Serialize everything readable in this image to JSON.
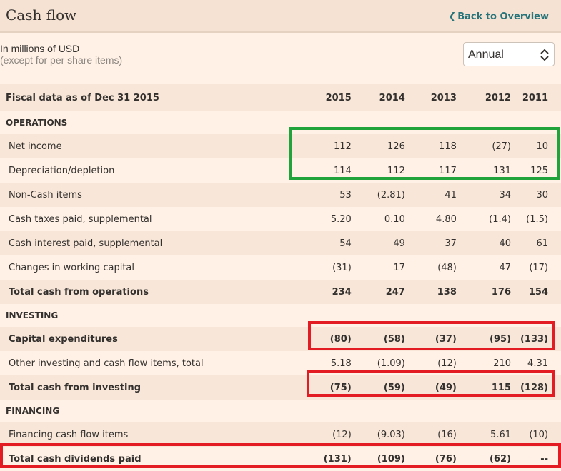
{
  "header": {
    "title": "Cash flow",
    "back_label": "Back to Overview",
    "back_icon": "chevron-left-icon"
  },
  "units": {
    "line1": "In millions of USD",
    "line2": "(except for per share items)"
  },
  "period_select": {
    "value": "Annual",
    "icon": "up-down-chevrons-icon"
  },
  "table": {
    "header": {
      "label": "Fiscal data as of Dec 31 2015",
      "years": [
        "2015",
        "2014",
        "2013",
        "2012",
        "2011"
      ]
    },
    "sections": {
      "operations": {
        "title": "OPERATIONS",
        "rows": [
          {
            "label": "Net income",
            "values": [
              "112",
              "126",
              "118",
              "(27)",
              "10"
            ]
          },
          {
            "label": "Depreciation/depletion",
            "values": [
              "114",
              "112",
              "117",
              "131",
              "125"
            ]
          },
          {
            "label": "Non-Cash items",
            "values": [
              "53",
              "(2.81)",
              "41",
              "34",
              "30"
            ]
          },
          {
            "label": "Cash taxes paid, supplemental",
            "values": [
              "5.20",
              "0.10",
              "4.80",
              "(1.4)",
              "(1.5)"
            ]
          },
          {
            "label": "Cash interest paid, supplemental",
            "values": [
              "54",
              "49",
              "37",
              "40",
              "61"
            ]
          },
          {
            "label": "Changes in working capital",
            "values": [
              "(31)",
              "17",
              "(48)",
              "47",
              "(17)"
            ]
          },
          {
            "label": "Total cash from operations",
            "values": [
              "234",
              "247",
              "138",
              "176",
              "154"
            ]
          }
        ]
      },
      "investing": {
        "title": "INVESTING",
        "rows": [
          {
            "label": "Capital expenditures",
            "values": [
              "(80)",
              "(58)",
              "(37)",
              "(95)",
              "(133)"
            ]
          },
          {
            "label": "Other investing and cash flow items, total",
            "values": [
              "5.18",
              "(1.09)",
              "(12)",
              "210",
              "4.31"
            ]
          },
          {
            "label": "Total cash from investing",
            "values": [
              "(75)",
              "(59)",
              "(49)",
              "115",
              "(128)"
            ]
          }
        ]
      },
      "financing": {
        "title": "FINANCING",
        "rows": [
          {
            "label": "Financing cash flow items",
            "values": [
              "(12)",
              "(9.03)",
              "(16)",
              "5.61",
              "(10)"
            ]
          },
          {
            "label": "Total cash dividends paid",
            "values": [
              "(131)",
              "(109)",
              "(76)",
              "(62)",
              "--"
            ]
          }
        ]
      }
    }
  },
  "annotation_colors": {
    "green": "#1fa33a",
    "red": "#e31b23"
  }
}
